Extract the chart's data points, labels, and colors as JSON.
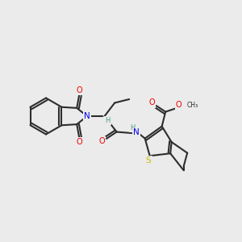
{
  "background_color": "#ebebeb",
  "bond_color": "#2d2d2d",
  "atom_colors": {
    "N": "#0000ee",
    "O": "#ee0000",
    "S": "#ccbb00",
    "H": "#4a9a8a",
    "C": "#2d2d2d"
  }
}
